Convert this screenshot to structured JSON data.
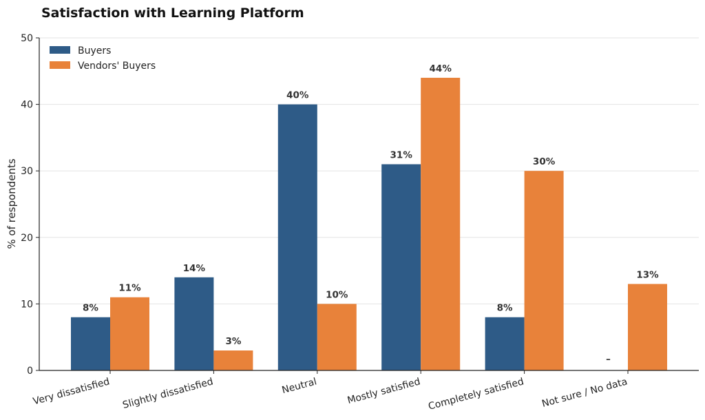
{
  "chart_data": {
    "type": "bar",
    "title": "Satisfaction with Learning Platform",
    "ylabel": "% of respondents",
    "xlabel": "",
    "ylim": [
      0,
      50
    ],
    "yticks": [
      0,
      10,
      20,
      30,
      40,
      50
    ],
    "grid": "horizontal",
    "legend_position": "top-left",
    "categories": [
      "Very dissatisfied",
      "Slightly dissatisfied",
      "Neutral",
      "Mostly satisfied",
      "Completely satisfied",
      "Not sure / No data"
    ],
    "series": [
      {
        "name": "Buyers",
        "color": "#2e5b87",
        "values": [
          8,
          14,
          40,
          31,
          8,
          null
        ],
        "labels": [
          "8%",
          "14%",
          "40%",
          "31%",
          "8%",
          "–"
        ]
      },
      {
        "name": "Vendors' Buyers",
        "color": "#e8823a",
        "values": [
          11,
          3,
          10,
          44,
          30,
          13
        ],
        "labels": [
          "11%",
          "3%",
          "10%",
          "44%",
          "30%",
          "13%"
        ]
      }
    ]
  }
}
